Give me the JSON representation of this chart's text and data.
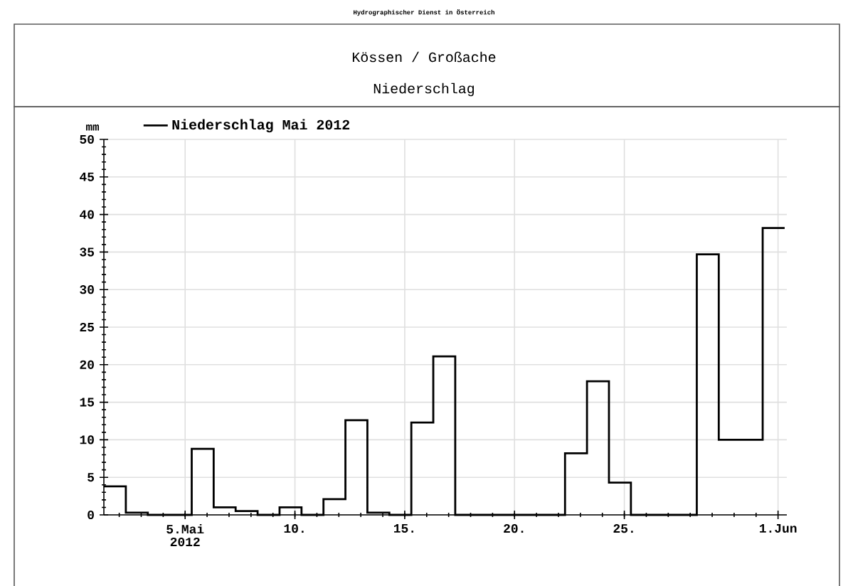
{
  "chart_data": {
    "type": "histogram",
    "title": "Kössen / Großache",
    "subtitle": "Niederschlag",
    "annotations": [
      "Hydrographischer Dienst in Österreich"
    ],
    "ylabel": "mm",
    "bins": [
      1.3,
      2.3,
      3.3,
      4.3,
      5.3,
      6.3,
      7.3,
      8.3,
      9.3,
      10.3,
      11.3,
      12.3,
      13.3,
      14.3,
      15.3,
      16.3,
      17.3,
      18.3,
      19.3,
      20.3,
      21.3,
      22.3,
      23.3,
      24.3,
      25.3,
      26.3,
      27.3,
      28.3,
      29.3,
      30.3,
      31.3,
      32.3
    ],
    "series": [
      {
        "name": "Niederschlag Mai 2012",
        "color": "#000000",
        "values": [
          3.8,
          0.3,
          0,
          0,
          8.8,
          1.0,
          0.5,
          0,
          1.0,
          0,
          2.1,
          12.6,
          0.3,
          0,
          12.3,
          21.1,
          0,
          0,
          0,
          0,
          0,
          8.2,
          17.8,
          4.3,
          0,
          0,
          0,
          34.7,
          10.0,
          10.0,
          38.2
        ]
      }
    ],
    "xlim": [
      1.3,
      32.4
    ],
    "ylim": [
      0,
      50
    ],
    "xticks": [
      {
        "value": 5,
        "label": "5.Mai 2012"
      },
      {
        "value": 10,
        "label": "10."
      },
      {
        "value": 15,
        "label": "15."
      },
      {
        "value": 20,
        "label": "20."
      },
      {
        "value": 25,
        "label": "25."
      },
      {
        "value": 32,
        "label": "1.Jun"
      }
    ],
    "yticks": [
      0,
      5,
      10,
      15,
      20,
      25,
      30,
      35,
      40,
      45,
      50
    ],
    "grid": true,
    "legend": "top left"
  }
}
